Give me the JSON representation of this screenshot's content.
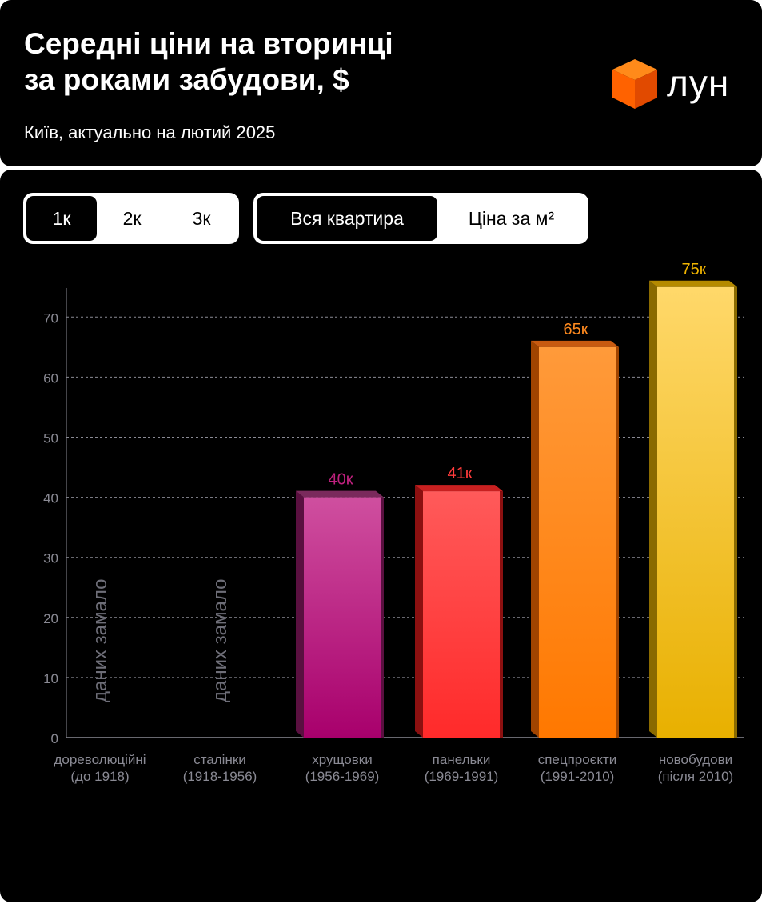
{
  "header": {
    "title_line1": "Середні ціни на вторинці",
    "title_line2": "за роками забудови, $",
    "subtitle": "Київ, актуально на лютий 2025",
    "logo_text": "лун",
    "logo_icon": "orange-cube-icon"
  },
  "room_tabs": [
    "1к",
    "2к",
    "3к"
  ],
  "room_tab_active": 0,
  "price_tabs": [
    "Вся квартира",
    "Ціна за м²"
  ],
  "price_tab_active": 0,
  "colors": {
    "background": "#000000",
    "accent_orange": "#ff6a00",
    "grid": "#8a8a94",
    "axis_text": "#8a8a94",
    "no_data_text": "#6e6e78"
  },
  "chart_data": {
    "type": "bar",
    "categories": [
      [
        "дореволюційні",
        "(до 1918)"
      ],
      [
        "сталінки",
        "(1918-1956)"
      ],
      [
        "хрущовки",
        "(1956-1969)"
      ],
      [
        "панельки",
        "(1969-1991)"
      ],
      [
        "спецпроєкти",
        "(1991-2010)"
      ],
      [
        "новобудови",
        "(після 2010)"
      ]
    ],
    "values": [
      null,
      null,
      40,
      41,
      65,
      75
    ],
    "value_labels": [
      "",
      "",
      "40к",
      "41к",
      "65к",
      "75к"
    ],
    "no_data_label": "даних замало",
    "bar_colors": [
      {
        "top": "#cf4f9f",
        "bottom": "#a8006c",
        "cap": "#7a2a5c",
        "side": "#5a1040",
        "label": "#c0217f"
      },
      {
        "top": "#cf4f9f",
        "bottom": "#a8006c",
        "cap": "#7a2a5c",
        "side": "#5a1040",
        "label": "#c0217f"
      },
      {
        "top": "#cf4f9f",
        "bottom": "#a8006c",
        "cap": "#7a2a5c",
        "side": "#5a1040",
        "label": "#c0217f"
      },
      {
        "top": "#ff5a5a",
        "bottom": "#ff2a2a",
        "cap": "#c82020",
        "side": "#8c1010",
        "label": "#ff3b3b"
      },
      {
        "top": "#ff9a3a",
        "bottom": "#ff7800",
        "cap": "#c85a10",
        "side": "#a04400",
        "label": "#ff8a1f"
      },
      {
        "top": "#ffd86a",
        "bottom": "#e8b000",
        "cap": "#b58a00",
        "side": "#8a6a00",
        "label": "#f0b400"
      }
    ],
    "yticks": [
      0,
      10,
      20,
      30,
      40,
      50,
      60,
      70
    ],
    "ylim": [
      0,
      75
    ],
    "grid": "dashed horizontal"
  }
}
